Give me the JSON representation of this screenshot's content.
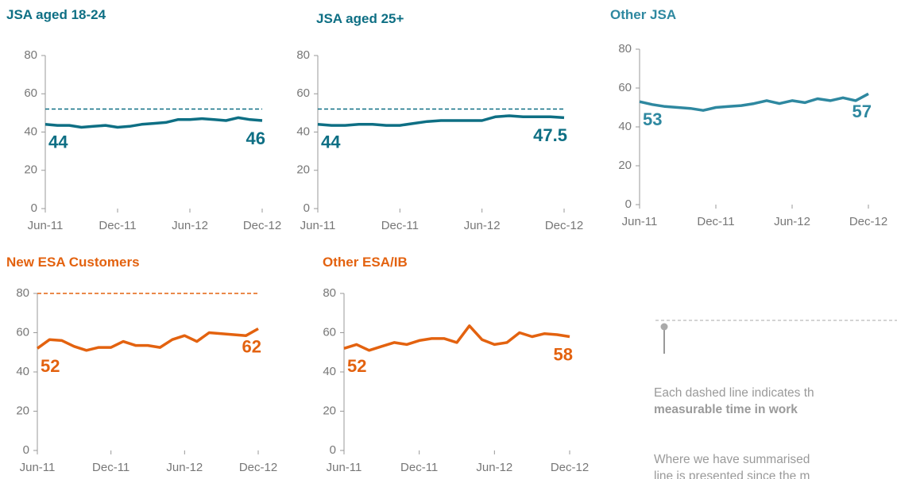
{
  "chart_data": [
    {
      "type": "line",
      "title": "JSA aged 18-24",
      "color": "#0e6f84",
      "categories": [
        "Jun-11",
        null,
        null,
        null,
        null,
        null,
        "Dec-11",
        null,
        null,
        null,
        null,
        null,
        "Jun-12",
        null,
        null,
        null,
        null,
        null,
        "Dec-12"
      ],
      "values": [
        44,
        43.5,
        43.5,
        42.5,
        43,
        43.5,
        42.5,
        43,
        44,
        44.5,
        45,
        46.5,
        46.5,
        47,
        46.5,
        46,
        47.5,
        46.5,
        46
      ],
      "target": 52,
      "ylim": [
        0,
        80
      ],
      "yticks": [
        0,
        20,
        40,
        60,
        80
      ]
    },
    {
      "type": "line",
      "title": "JSA aged 25+",
      "color": "#0e6f84",
      "categories": [
        "Jun-11",
        null,
        null,
        null,
        null,
        null,
        "Dec-11",
        null,
        null,
        null,
        null,
        null,
        "Jun-12",
        null,
        null,
        null,
        null,
        null,
        "Dec-12"
      ],
      "values": [
        44,
        43.5,
        43.5,
        44,
        44,
        43.5,
        43.5,
        44.5,
        45.5,
        46,
        46,
        46,
        46,
        48,
        48.5,
        48,
        48,
        48,
        47.5
      ],
      "target": 52,
      "ylim": [
        0,
        80
      ],
      "yticks": [
        0,
        20,
        40,
        60,
        80
      ]
    },
    {
      "type": "line",
      "title": "Other JSA",
      "color": "#2e88a0",
      "categories": [
        "Jun-11",
        null,
        null,
        null,
        null,
        null,
        "Dec-11",
        null,
        null,
        null,
        null,
        null,
        "Jun-12",
        null,
        null,
        null,
        null,
        null,
        "Dec-12"
      ],
      "values": [
        53,
        51.5,
        50.5,
        50,
        49.5,
        48.5,
        50,
        50.5,
        51,
        52,
        53.5,
        52,
        53.5,
        52.5,
        54.5,
        53.5,
        55,
        53.5,
        57
      ],
      "ylim": [
        0,
        80
      ],
      "yticks": [
        0,
        20,
        40,
        60,
        80
      ]
    },
    {
      "type": "line",
      "title": "New ESA Customers",
      "color": "#e3620f",
      "categories": [
        "Jun-11",
        null,
        null,
        null,
        null,
        null,
        "Dec-11",
        null,
        null,
        null,
        null,
        null,
        "Jun-12",
        null,
        null,
        null,
        null,
        null,
        "Dec-12"
      ],
      "values": [
        52,
        56.5,
        56,
        53,
        51,
        52.5,
        52.5,
        55.5,
        53.5,
        53.5,
        52.5,
        56.5,
        58.5,
        55.5,
        60,
        59.5,
        59,
        58.5,
        62
      ],
      "target": 80,
      "ylim": [
        0,
        80
      ],
      "yticks": [
        0,
        20,
        40,
        60,
        80
      ]
    },
    {
      "type": "line",
      "title": "Other ESA/IB",
      "color": "#e3620f",
      "categories": [
        "Jun-11",
        null,
        null,
        null,
        null,
        null,
        "Dec-11",
        null,
        null,
        null,
        null,
        null,
        "Jun-12",
        null,
        null,
        null,
        null,
        null,
        "Dec-12"
      ],
      "values": [
        52,
        54,
        51,
        53,
        55,
        54,
        56,
        57,
        57,
        55,
        63.5,
        56.5,
        54,
        55,
        60,
        58,
        59.5,
        59,
        58
      ],
      "ylim": [
        0,
        80
      ],
      "yticks": [
        0,
        20,
        40,
        60,
        80
      ]
    }
  ],
  "note": {
    "lines": [
      "Each dashed line indicates th",
      "measurable time in work",
      "Where we have summarised",
      "line is presented since the m"
    ]
  }
}
